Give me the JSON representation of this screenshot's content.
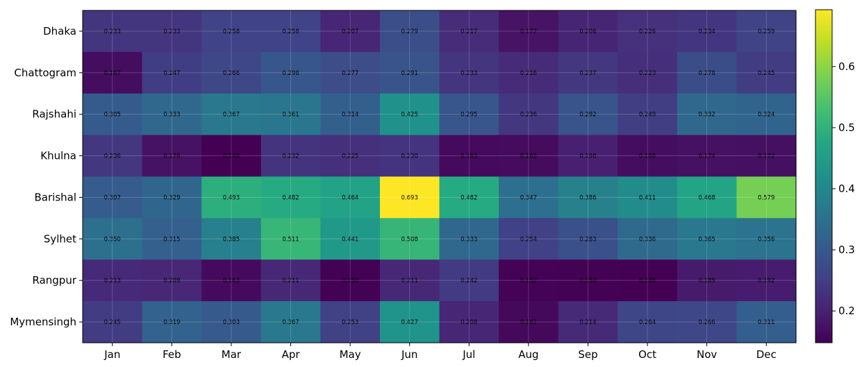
{
  "chart_data": {
    "type": "heatmap",
    "title": "",
    "xlabel": "",
    "ylabel": "",
    "colormap": "viridis",
    "grid": true,
    "colorbar": {
      "min": 0.148,
      "max": 0.693,
      "ticks": [
        0.2,
        0.3,
        0.4,
        0.5,
        0.6
      ],
      "tick_labels": [
        "0.2",
        "0.3",
        "0.4",
        "0.5",
        "0.6"
      ],
      "placement": "right"
    },
    "columns": [
      "Jan",
      "Feb",
      "Mar",
      "Apr",
      "May",
      "Jun",
      "Jul",
      "Aug",
      "Sep",
      "Oct",
      "Nov",
      "Dec"
    ],
    "rows": [
      "Dhaka",
      "Chattogram",
      "Rajshahi",
      "Khulna",
      "Barishal",
      "Sylhet",
      "Rangpur",
      "Mymensingh"
    ],
    "values": [
      [
        0.233,
        0.233,
        0.258,
        0.258,
        0.207,
        0.279,
        0.217,
        0.177,
        0.206,
        0.226,
        0.234,
        0.259
      ],
      [
        0.167,
        0.247,
        0.266,
        0.298,
        0.277,
        0.291,
        0.233,
        0.216,
        0.237,
        0.223,
        0.278,
        0.245
      ],
      [
        0.305,
        0.333,
        0.367,
        0.361,
        0.314,
        0.425,
        0.295,
        0.236,
        0.292,
        0.249,
        0.332,
        0.324
      ],
      [
        0.236,
        0.176,
        0.148,
        0.232,
        0.225,
        0.23,
        0.163,
        0.165,
        0.198,
        0.168,
        0.174,
        0.172
      ],
      [
        0.307,
        0.329,
        0.493,
        0.482,
        0.464,
        0.693,
        0.482,
        0.347,
        0.386,
        0.411,
        0.468,
        0.579
      ],
      [
        0.35,
        0.315,
        0.385,
        0.511,
        0.441,
        0.508,
        0.333,
        0.254,
        0.283,
        0.336,
        0.365,
        0.356
      ],
      [
        0.213,
        0.209,
        0.163,
        0.211,
        0.15,
        0.211,
        0.242,
        0.152,
        0.15,
        0.148,
        0.189,
        0.192
      ],
      [
        0.245,
        0.319,
        0.303,
        0.367,
        0.253,
        0.427,
        0.208,
        0.161,
        0.214,
        0.264,
        0.266,
        0.311
      ]
    ],
    "value_labels": [
      [
        "0.233",
        "0.233",
        "0.258",
        "0.258",
        "0.207",
        "0.279",
        "0.217",
        "0.177",
        "0.206",
        "0.226",
        "0.234",
        "0.259"
      ],
      [
        "0.167",
        "0.247",
        "0.266",
        "0.298",
        "0.277",
        "0.291",
        "0.233",
        "0.216",
        "0.237",
        "0.223",
        "0.278",
        "0.245"
      ],
      [
        "0.305",
        "0.333",
        "0.367",
        "0.361",
        "0.314",
        "0.425",
        "0.295",
        "0.236",
        "0.292",
        "0.249",
        "0.332",
        "0.324"
      ],
      [
        "0.236",
        "0.176",
        "0.148",
        "0.232",
        "0.225",
        "0.230",
        "0.163",
        "0.165",
        "0.198",
        "0.168",
        "0.174",
        "0.172"
      ],
      [
        "0.307",
        "0.329",
        "0.493",
        "0.482",
        "0.464",
        "0.693",
        "0.482",
        "0.347",
        "0.386",
        "0.411",
        "0.468",
        "0.579"
      ],
      [
        "0.350",
        "0.315",
        "0.385",
        "0.511",
        "0.441",
        "0.508",
        "0.333",
        "0.254",
        "0.283",
        "0.336",
        "0.365",
        "0.356"
      ],
      [
        "0.213",
        "0.209",
        "0.163",
        "0.211",
        "0.150",
        "0.211",
        "0.242",
        "0.152",
        "0.150",
        "0.148",
        "0.189",
        "0.192"
      ],
      [
        "0.245",
        "0.319",
        "0.303",
        "0.367",
        "0.253",
        "0.427",
        "0.208",
        "0.161",
        "0.214",
        "0.264",
        "0.266",
        "0.311"
      ]
    ]
  }
}
